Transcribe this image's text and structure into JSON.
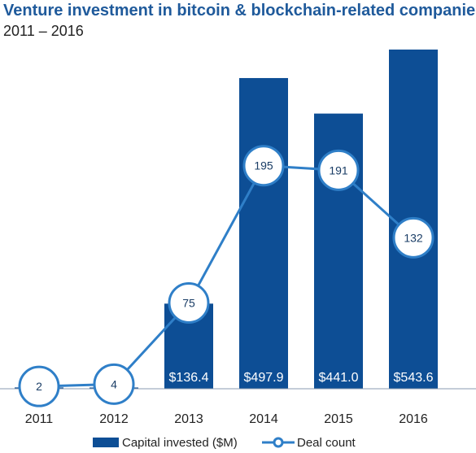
{
  "chart_data": {
    "type": "bar",
    "title": "Venture investment in bitcoin & blockchain-related companies",
    "subtitle": "2011 – 2016",
    "categories": [
      "2011",
      "2012",
      "2013",
      "2014",
      "2015",
      "2016"
    ],
    "series": [
      {
        "name": "Capital invested ($M)",
        "type": "bar",
        "values": [
          2.1,
          2.0,
          136.4,
          497.9,
          441.0,
          543.6
        ],
        "labels": [
          "",
          "",
          "$136.4",
          "$497.9",
          "$441.0",
          "$543.6"
        ],
        "color": "#0d4e95"
      },
      {
        "name": "Deal count",
        "type": "line",
        "values": [
          2,
          4,
          75,
          195,
          191,
          132
        ],
        "labels": [
          "2",
          "4",
          "75",
          "195",
          "191",
          "132"
        ],
        "color": "#2f7fc8"
      }
    ],
    "ylim_bar": [
      0,
      550
    ],
    "ylim_line": [
      0,
      300
    ],
    "grid": false,
    "legend": "bottom"
  }
}
